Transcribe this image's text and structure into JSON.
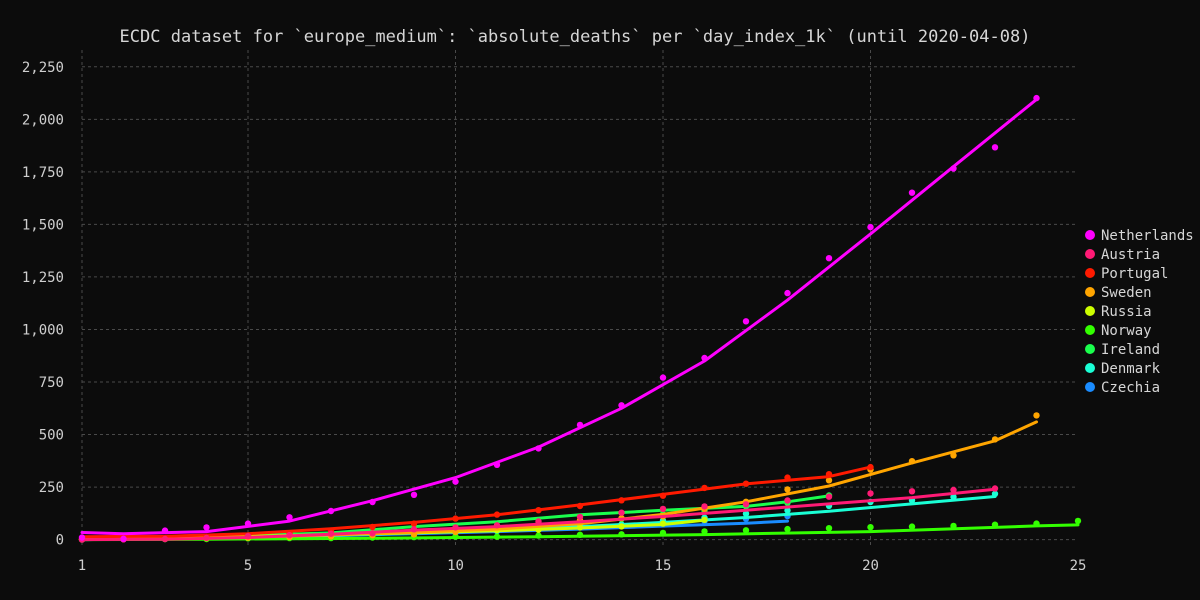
{
  "chart_data": {
    "type": "scatter",
    "title": "ECDC dataset for `europe_medium`: `absolute_deaths` per `day_index_1k` (until 2020-04-08)",
    "xlabel": "",
    "ylabel": "",
    "xlim": [
      1,
      25
    ],
    "ylim": [
      -40,
      2330
    ],
    "x_ticks": [
      1,
      5,
      10,
      15,
      20,
      25
    ],
    "y_ticks": [
      0,
      250,
      500,
      750,
      1000,
      1250,
      1500,
      1750,
      2000,
      2250
    ],
    "grid": true,
    "legend_position": "right",
    "series": [
      {
        "name": "Netherlands",
        "color": "#ff00ff",
        "points": [
          [
            1,
            10
          ],
          [
            2,
            4
          ],
          [
            3,
            43
          ],
          [
            4,
            58
          ],
          [
            5,
            76
          ],
          [
            6,
            106
          ],
          [
            7,
            136
          ],
          [
            8,
            179
          ],
          [
            9,
            213
          ],
          [
            10,
            276
          ],
          [
            11,
            356
          ],
          [
            12,
            434
          ],
          [
            13,
            546
          ],
          [
            14,
            639
          ],
          [
            15,
            771
          ],
          [
            16,
            864
          ],
          [
            17,
            1039
          ],
          [
            18,
            1173
          ],
          [
            19,
            1339
          ],
          [
            20,
            1487
          ],
          [
            21,
            1651
          ],
          [
            22,
            1766
          ],
          [
            23,
            1867
          ],
          [
            24,
            2101
          ]
        ],
        "trend": [
          [
            1,
            34
          ],
          [
            2,
            28
          ],
          [
            4,
            38
          ],
          [
            6,
            88
          ],
          [
            8,
            185
          ],
          [
            10,
            295
          ],
          [
            12,
            440
          ],
          [
            14,
            625
          ],
          [
            16,
            850
          ],
          [
            18,
            1140
          ],
          [
            20,
            1455
          ],
          [
            22,
            1775
          ],
          [
            24,
            2095
          ]
        ]
      },
      {
        "name": "Austria",
        "color": "#ff1a75",
        "points": [
          [
            1,
            0
          ],
          [
            2,
            1
          ],
          [
            3,
            3
          ],
          [
            4,
            8
          ],
          [
            5,
            16
          ],
          [
            6,
            21
          ],
          [
            7,
            28
          ],
          [
            8,
            30
          ],
          [
            9,
            49
          ],
          [
            10,
            58
          ],
          [
            11,
            68
          ],
          [
            12,
            86
          ],
          [
            13,
            108
          ],
          [
            14,
            128
          ],
          [
            15,
            146
          ],
          [
            16,
            158
          ],
          [
            17,
            168
          ],
          [
            18,
            186
          ],
          [
            19,
            204
          ],
          [
            20,
            220
          ],
          [
            21,
            230
          ],
          [
            22,
            236
          ],
          [
            23,
            243
          ]
        ],
        "trend": [
          [
            1,
            0
          ],
          [
            3,
            2
          ],
          [
            5,
            10
          ],
          [
            7,
            25
          ],
          [
            9,
            45
          ],
          [
            11,
            62
          ],
          [
            13,
            85
          ],
          [
            15,
            110
          ],
          [
            17,
            140
          ],
          [
            19,
            170
          ],
          [
            21,
            200
          ],
          [
            23,
            240
          ]
        ]
      },
      {
        "name": "Portugal",
        "color": "#ff1a00",
        "points": [
          [
            1,
            2
          ],
          [
            2,
            3
          ],
          [
            3,
            6
          ],
          [
            4,
            12
          ],
          [
            5,
            20
          ],
          [
            6,
            30
          ],
          [
            7,
            43
          ],
          [
            8,
            60
          ],
          [
            9,
            76
          ],
          [
            10,
            100
          ],
          [
            11,
            119
          ],
          [
            12,
            140
          ],
          [
            13,
            160
          ],
          [
            14,
            187
          ],
          [
            15,
            209
          ],
          [
            16,
            246
          ],
          [
            17,
            266
          ],
          [
            18,
            295
          ],
          [
            19,
            311
          ],
          [
            20,
            345
          ]
        ],
        "trend": [
          [
            1,
            14
          ],
          [
            3,
            16
          ],
          [
            5,
            28
          ],
          [
            7,
            52
          ],
          [
            9,
            82
          ],
          [
            11,
            118
          ],
          [
            13,
            165
          ],
          [
            15,
            215
          ],
          [
            17,
            265
          ],
          [
            19,
            300
          ],
          [
            20,
            345
          ]
        ]
      },
      {
        "name": "Sweden",
        "color": "#ffa500",
        "points": [
          [
            1,
            2
          ],
          [
            2,
            3
          ],
          [
            3,
            6
          ],
          [
            4,
            7
          ],
          [
            5,
            10
          ],
          [
            6,
            12
          ],
          [
            7,
            15
          ],
          [
            8,
            21
          ],
          [
            9,
            25
          ],
          [
            10,
            36
          ],
          [
            11,
            62
          ],
          [
            12,
            77
          ],
          [
            13,
            92
          ],
          [
            14,
            102
          ],
          [
            15,
            110
          ],
          [
            16,
            146
          ],
          [
            17,
            180
          ],
          [
            18,
            239
          ],
          [
            19,
            282
          ],
          [
            20,
            333
          ],
          [
            21,
            373
          ],
          [
            22,
            401
          ],
          [
            23,
            477
          ],
          [
            24,
            591
          ]
        ],
        "trend": [
          [
            1,
            4
          ],
          [
            3,
            6
          ],
          [
            5,
            12
          ],
          [
            7,
            22
          ],
          [
            9,
            35
          ],
          [
            11,
            50
          ],
          [
            13,
            75
          ],
          [
            15,
            120
          ],
          [
            17,
            180
          ],
          [
            19,
            255
          ],
          [
            21,
            365
          ],
          [
            23,
            470
          ],
          [
            24,
            560
          ]
        ]
      },
      {
        "name": "Russia",
        "color": "#ccff00",
        "points": [
          [
            1,
            1
          ],
          [
            2,
            2
          ],
          [
            3,
            4
          ],
          [
            4,
            8
          ],
          [
            5,
            9
          ],
          [
            6,
            17
          ],
          [
            7,
            24
          ],
          [
            8,
            30
          ],
          [
            9,
            34
          ],
          [
            10,
            43
          ],
          [
            11,
            45
          ],
          [
            12,
            47
          ],
          [
            13,
            58
          ],
          [
            14,
            63
          ],
          [
            15,
            76
          ],
          [
            16,
            94
          ]
        ],
        "trend": [
          [
            1,
            8
          ],
          [
            3,
            10
          ],
          [
            5,
            15
          ],
          [
            7,
            24
          ],
          [
            9,
            32
          ],
          [
            11,
            42
          ],
          [
            13,
            55
          ],
          [
            15,
            72
          ],
          [
            16,
            92
          ]
        ]
      },
      {
        "name": "Norway",
        "color": "#33ff00",
        "points": [
          [
            1,
            1
          ],
          [
            2,
            3
          ],
          [
            3,
            3
          ],
          [
            4,
            3
          ],
          [
            5,
            6
          ],
          [
            6,
            7
          ],
          [
            7,
            7
          ],
          [
            8,
            10
          ],
          [
            9,
            12
          ],
          [
            10,
            14
          ],
          [
            11,
            14
          ],
          [
            12,
            19
          ],
          [
            13,
            23
          ],
          [
            14,
            25
          ],
          [
            15,
            32
          ],
          [
            16,
            39
          ],
          [
            17,
            44
          ],
          [
            18,
            50
          ],
          [
            19,
            54
          ],
          [
            20,
            59
          ],
          [
            21,
            62
          ],
          [
            22,
            65
          ],
          [
            23,
            71
          ],
          [
            24,
            76
          ],
          [
            25,
            89
          ]
        ],
        "trend": [
          [
            1,
            0
          ],
          [
            4,
            2
          ],
          [
            8,
            6
          ],
          [
            12,
            14
          ],
          [
            16,
            24
          ],
          [
            20,
            38
          ],
          [
            24,
            65
          ],
          [
            25,
            70
          ]
        ]
      },
      {
        "name": "Ireland",
        "color": "#1aff4d",
        "points": [
          [
            1,
            1
          ],
          [
            2,
            2
          ],
          [
            3,
            3
          ],
          [
            4,
            6
          ],
          [
            5,
            7
          ],
          [
            6,
            9
          ],
          [
            7,
            19
          ],
          [
            8,
            22
          ],
          [
            9,
            36
          ],
          [
            10,
            46
          ],
          [
            11,
            54
          ],
          [
            12,
            71
          ],
          [
            13,
            85
          ],
          [
            14,
            98
          ],
          [
            15,
            120
          ],
          [
            16,
            137
          ],
          [
            17,
            158
          ],
          [
            18,
            174
          ],
          [
            19,
            210
          ]
        ],
        "trend": [
          [
            1,
            8
          ],
          [
            3,
            12
          ],
          [
            5,
            20
          ],
          [
            7,
            32
          ],
          [
            9,
            62
          ],
          [
            11,
            85
          ],
          [
            13,
            118
          ],
          [
            15,
            140
          ],
          [
            17,
            158
          ],
          [
            18,
            180
          ],
          [
            19,
            208
          ]
        ]
      },
      {
        "name": "Denmark",
        "color": "#1affd5",
        "points": [
          [
            1,
            1
          ],
          [
            2,
            4
          ],
          [
            3,
            4
          ],
          [
            4,
            6
          ],
          [
            5,
            9
          ],
          [
            6,
            13
          ],
          [
            7,
            13
          ],
          [
            8,
            24
          ],
          [
            9,
            32
          ],
          [
            10,
            34
          ],
          [
            11,
            41
          ],
          [
            12,
            52
          ],
          [
            13,
            65
          ],
          [
            14,
            72
          ],
          [
            15,
            90
          ],
          [
            16,
            104
          ],
          [
            17,
            123
          ],
          [
            18,
            139
          ],
          [
            19,
            161
          ],
          [
            20,
            179
          ],
          [
            21,
            187
          ],
          [
            22,
            203
          ],
          [
            23,
            218
          ]
        ],
        "trend": [
          [
            1,
            0
          ],
          [
            3,
            4
          ],
          [
            5,
            10
          ],
          [
            7,
            20
          ],
          [
            9,
            32
          ],
          [
            11,
            45
          ],
          [
            13,
            62
          ],
          [
            15,
            82
          ],
          [
            17,
            105
          ],
          [
            19,
            135
          ],
          [
            21,
            170
          ],
          [
            23,
            205
          ]
        ]
      },
      {
        "name": "Czechia",
        "color": "#1a8cff",
        "points": [
          [
            1,
            1
          ],
          [
            2,
            3
          ],
          [
            3,
            6
          ],
          [
            4,
            9
          ],
          [
            5,
            11
          ],
          [
            6,
            16
          ],
          [
            7,
            23
          ],
          [
            8,
            26
          ],
          [
            9,
            31
          ],
          [
            10,
            39
          ],
          [
            11,
            44
          ],
          [
            12,
            53
          ],
          [
            13,
            59
          ],
          [
            14,
            67
          ],
          [
            15,
            78
          ],
          [
            16,
            88
          ],
          [
            17,
            99
          ],
          [
            18,
            112
          ]
        ],
        "trend": [
          [
            1,
            0
          ],
          [
            3,
            4
          ],
          [
            5,
            10
          ],
          [
            7,
            18
          ],
          [
            9,
            28
          ],
          [
            11,
            38
          ],
          [
            13,
            50
          ],
          [
            15,
            64
          ],
          [
            17,
            78
          ],
          [
            18,
            88
          ]
        ]
      }
    ]
  }
}
